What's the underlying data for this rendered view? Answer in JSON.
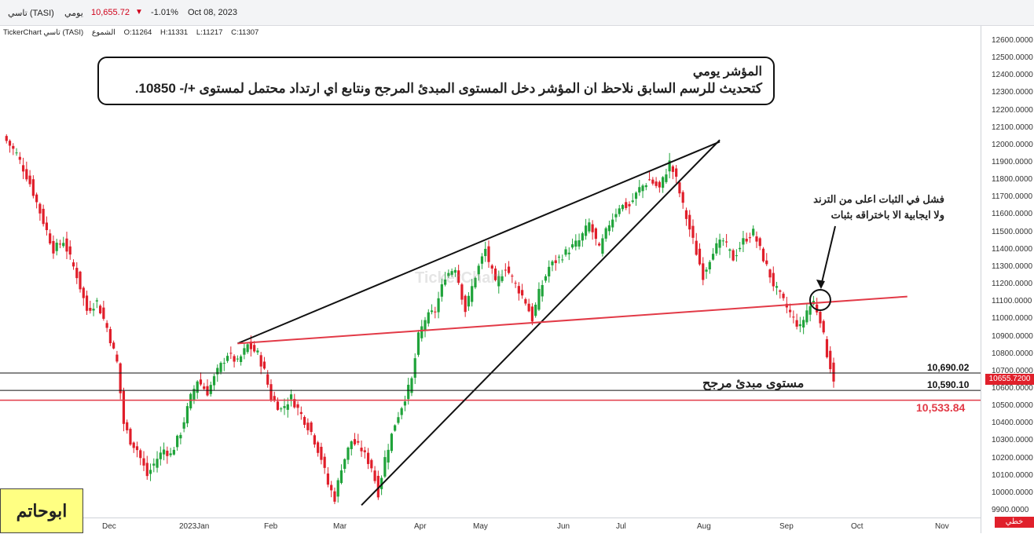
{
  "header": {
    "symbol": "تاسي (TASI)",
    "period": "يومي",
    "price": "10,655.72",
    "change": "-1.01%",
    "date": "Oct 08, 2023"
  },
  "ohlc": {
    "source": "TickerChart تاسي (TASI)",
    "chart_type": "الشموع",
    "open": "O:11264",
    "high": "H:11331",
    "low": "L:11217",
    "close": "C:11307"
  },
  "annotations": {
    "note_title": "المؤشر يومي",
    "note_body": "كتحديث للرسم السابق نلاحظ ان المؤشر دخل المستوى المبدئ المرجح ونتابع اي ارتداد محتمل لمستوى +/- 10850.",
    "failed_line1": "فشل في الثبات اعلى من الترند",
    "failed_line2": "ولا ايجابية الا باختراقه بثبات",
    "support_label": "مستوى مبدئ مرجح",
    "level_1": "10,690.02",
    "level_2": "10,590.10",
    "level_3": "10,533.84",
    "price_tag": "10655.7200",
    "line_type": "خطي",
    "author": "ابوحاتم",
    "watermark": "TickerChart"
  },
  "colors": {
    "up": "#1fa33a",
    "down": "#e01e2a",
    "red_line": "#e23a47",
    "black_line": "#111111"
  },
  "chart_data": {
    "type": "candlestick",
    "ylim": [
      9880,
      12680
    ],
    "yticks": [
      "12600.0000",
      "12500.0000",
      "12400.0000",
      "12300.0000",
      "12200.0000",
      "12100.0000",
      "12000.0000",
      "11900.0000",
      "11800.0000",
      "11700.0000",
      "11600.0000",
      "11500.0000",
      "11400.0000",
      "11300.0000",
      "11200.0000",
      "11100.0000",
      "11000.0000",
      "10900.0000",
      "10800.0000",
      "10700.0000",
      "10600.0000",
      "10500.0000",
      "10400.0000",
      "10300.0000",
      "10200.0000",
      "10100.0000",
      "10000.0000",
      "9900.0000"
    ],
    "xticks": [
      "Dec",
      "2023Jan",
      "Feb",
      "Mar",
      "Apr",
      "May",
      "Jun",
      "Jul",
      "Aug",
      "Sep",
      "Oct",
      "Nov"
    ],
    "close_path": [
      [
        0,
        12050
      ],
      [
        4,
        11950
      ],
      [
        8,
        11780
      ],
      [
        12,
        11560
      ],
      [
        15,
        11400
      ],
      [
        18,
        11450
      ],
      [
        22,
        11250
      ],
      [
        25,
        11050
      ],
      [
        28,
        11100
      ],
      [
        31,
        10950
      ],
      [
        34,
        10750
      ],
      [
        36,
        10400
      ],
      [
        38,
        10300
      ],
      [
        40,
        10250
      ],
      [
        43,
        10100
      ],
      [
        46,
        10200
      ],
      [
        48,
        10250
      ],
      [
        50,
        10220
      ],
      [
        53,
        10350
      ],
      [
        56,
        10550
      ],
      [
        58,
        10650
      ],
      [
        61,
        10580
      ],
      [
        64,
        10700
      ],
      [
        67,
        10800
      ],
      [
        70,
        10750
      ],
      [
        73,
        10850
      ],
      [
        76,
        10800
      ],
      [
        78,
        10700
      ],
      [
        80,
        10550
      ],
      [
        83,
        10480
      ],
      [
        86,
        10550
      ],
      [
        89,
        10450
      ],
      [
        92,
        10350
      ],
      [
        95,
        10200
      ],
      [
        97,
        10050
      ],
      [
        99,
        9970
      ],
      [
        101,
        10150
      ],
      [
        104,
        10300
      ],
      [
        107,
        10250
      ],
      [
        110,
        10150
      ],
      [
        112,
        10000
      ],
      [
        114,
        10200
      ],
      [
        117,
        10400
      ],
      [
        120,
        10550
      ],
      [
        122,
        10650
      ],
      [
        124,
        10900
      ],
      [
        126,
        11000
      ],
      [
        129,
        11050
      ],
      [
        132,
        11250
      ],
      [
        135,
        11300
      ],
      [
        138,
        11050
      ],
      [
        141,
        11250
      ],
      [
        144,
        11400
      ],
      [
        147,
        11200
      ],
      [
        150,
        11300
      ],
      [
        153,
        11200
      ],
      [
        156,
        11100
      ],
      [
        158,
        11000
      ],
      [
        160,
        11150
      ],
      [
        163,
        11300
      ],
      [
        166,
        11350
      ],
      [
        169,
        11400
      ],
      [
        172,
        11450
      ],
      [
        175,
        11550
      ],
      [
        178,
        11400
      ],
      [
        181,
        11550
      ],
      [
        184,
        11650
      ],
      [
        187,
        11650
      ],
      [
        190,
        11750
      ],
      [
        193,
        11800
      ],
      [
        196,
        11750
      ],
      [
        199,
        11900
      ],
      [
        201,
        11800
      ],
      [
        203,
        11650
      ],
      [
        206,
        11450
      ],
      [
        209,
        11250
      ],
      [
        212,
        11400
      ],
      [
        215,
        11450
      ],
      [
        218,
        11350
      ],
      [
        221,
        11450
      ],
      [
        224,
        11500
      ],
      [
        227,
        11350
      ],
      [
        230,
        11200
      ],
      [
        233,
        11100
      ],
      [
        236,
        11000
      ],
      [
        238,
        10950
      ],
      [
        240,
        11050
      ],
      [
        242,
        11100
      ],
      [
        244,
        11000
      ],
      [
        246,
        10800
      ],
      [
        248,
        10656
      ]
    ],
    "trend_lines": [
      {
        "label": "upper-wedge",
        "from": [
          70,
          10860
        ],
        "to": [
          214,
          12020
        ]
      },
      {
        "label": "lower-wedge",
        "from": [
          107,
          9930
        ],
        "to": [
          214,
          12030
        ]
      },
      {
        "label": "red-trend",
        "from": [
          70,
          10860
        ],
        "to": [
          270,
          11130
        ]
      }
    ],
    "horizontal_levels": [
      10690.02,
      10590.1,
      10533.84
    ],
    "last_price": 10655.72
  }
}
